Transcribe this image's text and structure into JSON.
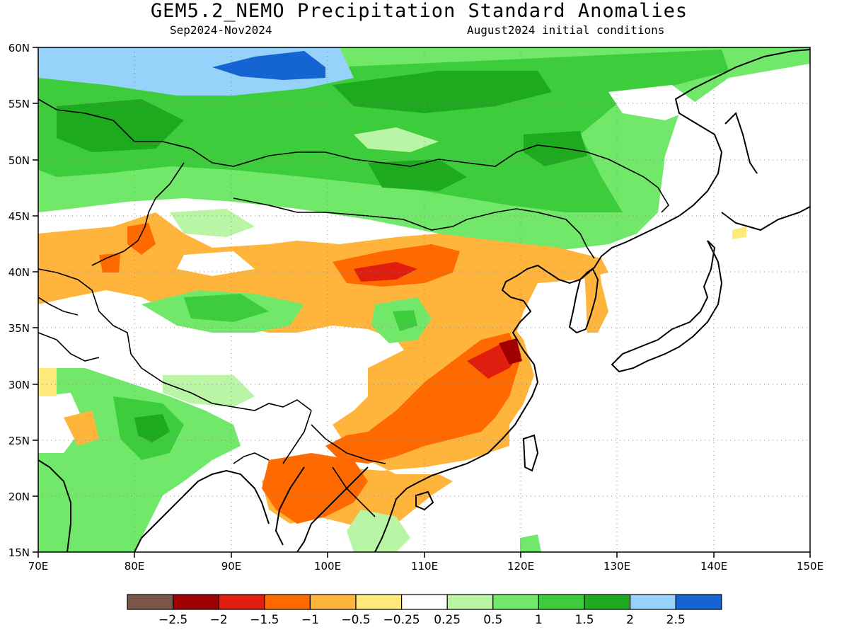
{
  "title": "GEM5.2_NEMO Precipitation Standard Anomalies",
  "subtitle_left": "Sep2024-Nov2024",
  "subtitle_right": "August2024 initial conditions",
  "map": {
    "lon_range": [
      70,
      150
    ],
    "lat_range": [
      15,
      60
    ],
    "lon_ticks": [
      "70E",
      "80E",
      "90E",
      "100E",
      "110E",
      "120E",
      "130E",
      "140E",
      "150E"
    ],
    "lat_ticks": [
      "15N",
      "20N",
      "25N",
      "30N",
      "35N",
      "40N",
      "45N",
      "50N",
      "55N",
      "60N"
    ],
    "grid": "dotted"
  },
  "colorbar": {
    "colors": [
      "#7a5548",
      "#a00000",
      "#e01e10",
      "#ff6a00",
      "#ffb43c",
      "#ffe97a",
      "#ffffff",
      "#baf5a5",
      "#72e86a",
      "#3ccc3c",
      "#1eaa1e",
      "#96d2fa",
      "#1464d2"
    ],
    "labels": [
      "−2.5",
      "−2",
      "−1.5",
      "−1",
      "−0.5",
      "−0.25",
      "0.25",
      "0.5",
      "1",
      "1.5",
      "2",
      "2.5"
    ]
  }
}
